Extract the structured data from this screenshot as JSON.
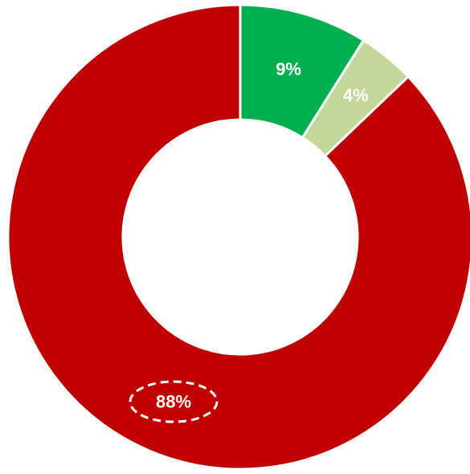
{
  "chart_data": {
    "type": "pie",
    "variant": "donut",
    "start": "12 o'clock",
    "direction": "clockwise",
    "slices": [
      {
        "value": 9,
        "label": "9%",
        "color": "#00B050",
        "highlighted": false
      },
      {
        "value": 4,
        "label": "4%",
        "color": "#C4D79B",
        "highlighted": false
      },
      {
        "value": 88,
        "label": "88%",
        "color": "#C00000",
        "highlighted": true
      }
    ],
    "slice_border_color": "#ffffff",
    "highlight_style": "dashed white ellipse around label",
    "legend": "none"
  }
}
